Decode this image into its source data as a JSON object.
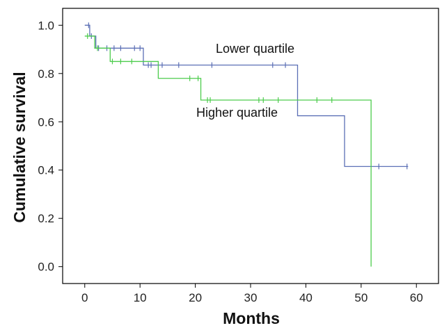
{
  "chart_data": {
    "type": "line",
    "subtype": "kaplan-meier-step",
    "title": "",
    "xlabel": "Months",
    "ylabel": "Cumulative survival",
    "xlim": [
      -4,
      64
    ],
    "ylim": [
      -0.07,
      1.07
    ],
    "xticks": [
      "0",
      "10",
      "20",
      "30",
      "40",
      "50",
      "60"
    ],
    "yticks": [
      "0.0",
      "0.2",
      "0.4",
      "0.6",
      "0.8",
      "1.0"
    ],
    "grid": false,
    "legend": "none",
    "annotations": [
      "Lower quartile",
      "Higher quartile"
    ],
    "series": [
      {
        "color": "#5b6fb5",
        "steps": [
          [
            0,
            1.0
          ],
          [
            0.9,
            0.955
          ],
          [
            2.0,
            0.905
          ],
          [
            10.6,
            0.835
          ],
          [
            38.5,
            0.625
          ],
          [
            47.0,
            0.415
          ],
          [
            58.5,
            0.415
          ]
        ],
        "censored": [
          [
            0.7,
            1.0
          ],
          [
            1.2,
            0.955
          ],
          [
            2.5,
            0.905
          ],
          [
            4.0,
            0.905
          ],
          [
            5.3,
            0.905
          ],
          [
            6.5,
            0.905
          ],
          [
            9.0,
            0.905
          ],
          [
            10.0,
            0.905
          ],
          [
            11.5,
            0.835
          ],
          [
            12.0,
            0.835
          ],
          [
            14.0,
            0.835
          ],
          [
            17.0,
            0.835
          ],
          [
            23.0,
            0.835
          ],
          [
            34.0,
            0.835
          ],
          [
            36.3,
            0.835
          ],
          [
            53.2,
            0.415
          ],
          [
            58.3,
            0.415
          ]
        ]
      },
      {
        "color": "#4ccc4c",
        "steps": [
          [
            0,
            0.955
          ],
          [
            1.8,
            0.905
          ],
          [
            4.6,
            0.85
          ],
          [
            13.3,
            0.78
          ],
          [
            21.0,
            0.69
          ],
          [
            51.8,
            0.0
          ]
        ],
        "censored": [
          [
            0.5,
            0.955
          ],
          [
            2.3,
            0.905
          ],
          [
            5.0,
            0.85
          ],
          [
            6.5,
            0.85
          ],
          [
            8.5,
            0.85
          ],
          [
            19.0,
            0.78
          ],
          [
            20.5,
            0.78
          ],
          [
            22.2,
            0.69
          ],
          [
            22.7,
            0.69
          ],
          [
            31.5,
            0.69
          ],
          [
            32.3,
            0.69
          ],
          [
            35.0,
            0.69
          ],
          [
            42.0,
            0.69
          ],
          [
            44.7,
            0.69
          ]
        ]
      }
    ]
  }
}
